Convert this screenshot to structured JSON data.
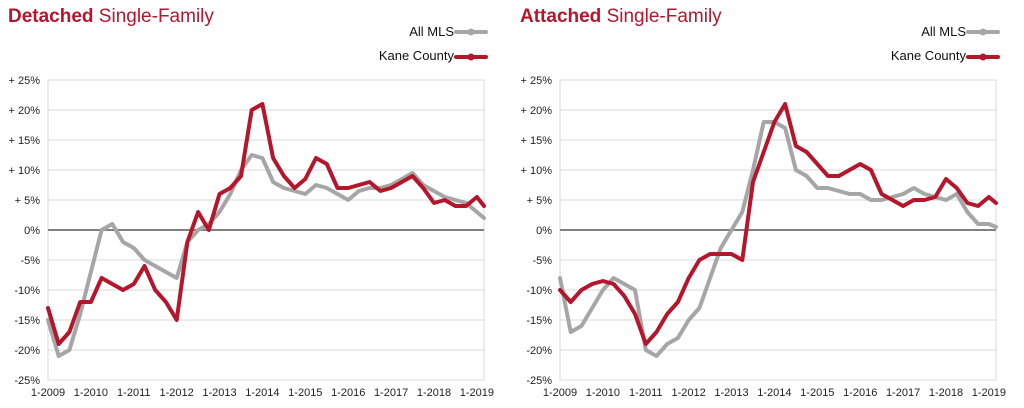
{
  "colors": {
    "accent": "#b5162b",
    "all_mls": "#a6a6a6",
    "kane": "#b5162b",
    "zero_line": "#808080",
    "grid": "#d9d9d9"
  },
  "chart_data": [
    {
      "type": "line",
      "title_bold": "Detached",
      "title_rest": " Single-Family",
      "ylim": [
        -25,
        25
      ],
      "y_ticks": [
        "+ 25%",
        "+ 20%",
        "+ 15%",
        "+ 10%",
        "+ 5%",
        "0%",
        "-5%",
        "-10%",
        "-15%",
        "-20%",
        "-25%"
      ],
      "x_ticks": [
        "1-2009",
        "1-2010",
        "1-2011",
        "1-2012",
        "1-2013",
        "1-2014",
        "1-2015",
        "1-2016",
        "1-2017",
        "1-2018",
        "1-2019"
      ],
      "x_range": [
        "2009-01",
        "2019-03"
      ],
      "grid": true,
      "legend": "top-right",
      "series": [
        {
          "name": "All MLS",
          "x": [
            "2009-01",
            "2009-04",
            "2009-07",
            "2009-10",
            "2010-01",
            "2010-04",
            "2010-07",
            "2010-10",
            "2011-01",
            "2011-04",
            "2011-07",
            "2011-10",
            "2012-01",
            "2012-04",
            "2012-07",
            "2012-10",
            "2013-01",
            "2013-04",
            "2013-07",
            "2013-10",
            "2014-01",
            "2014-04",
            "2014-07",
            "2014-10",
            "2015-01",
            "2015-04",
            "2015-07",
            "2015-10",
            "2016-01",
            "2016-04",
            "2016-07",
            "2016-10",
            "2017-01",
            "2017-04",
            "2017-07",
            "2017-10",
            "2018-01",
            "2018-04",
            "2018-07",
            "2018-10",
            "2019-01",
            "2019-03"
          ],
          "values": [
            -15,
            -21,
            -20,
            -14,
            -7,
            0,
            1,
            -2,
            -3,
            -5,
            -6,
            -7,
            -8,
            -2,
            0,
            1,
            3,
            6,
            10,
            12.5,
            12,
            8,
            7,
            6.5,
            6,
            7.5,
            7,
            6,
            5,
            6.5,
            7,
            7,
            7.5,
            8.5,
            9.5,
            7.5,
            6.5,
            5.5,
            5,
            4.5,
            3,
            2
          ]
        },
        {
          "name": "Kane County",
          "x": [
            "2009-01",
            "2009-04",
            "2009-07",
            "2009-10",
            "2010-01",
            "2010-04",
            "2010-07",
            "2010-10",
            "2011-01",
            "2011-04",
            "2011-07",
            "2011-10",
            "2012-01",
            "2012-04",
            "2012-07",
            "2012-10",
            "2013-01",
            "2013-04",
            "2013-07",
            "2013-10",
            "2014-01",
            "2014-04",
            "2014-07",
            "2014-10",
            "2015-01",
            "2015-04",
            "2015-07",
            "2015-10",
            "2016-01",
            "2016-04",
            "2016-07",
            "2016-10",
            "2017-01",
            "2017-04",
            "2017-07",
            "2017-10",
            "2018-01",
            "2018-04",
            "2018-07",
            "2018-10",
            "2019-01",
            "2019-03"
          ],
          "values": [
            -13,
            -19,
            -17,
            -12,
            -12,
            -8,
            -9,
            -10,
            -9,
            -6,
            -10,
            -12,
            -15,
            -2,
            3,
            0,
            6,
            7,
            9,
            20,
            21,
            12,
            9,
            7,
            8.5,
            12,
            11,
            7,
            7,
            7.5,
            8,
            6.5,
            7,
            8,
            9,
            7,
            4.5,
            5,
            4,
            4,
            5.5,
            4
          ]
        }
      ]
    },
    {
      "type": "line",
      "title_bold": "Attached",
      "title_rest": " Single-Family",
      "ylim": [
        -25,
        25
      ],
      "y_ticks": [
        "+ 25%",
        "+ 20%",
        "+ 15%",
        "+ 10%",
        "+ 5%",
        "0%",
        "-5%",
        "-10%",
        "-15%",
        "-20%",
        "-25%"
      ],
      "x_ticks": [
        "1-2009",
        "1-2010",
        "1-2011",
        "1-2012",
        "1-2013",
        "1-2014",
        "1-2015",
        "1-2016",
        "1-2017",
        "1-2018",
        "1-2019"
      ],
      "x_range": [
        "2009-01",
        "2019-03"
      ],
      "grid": true,
      "legend": "top-right",
      "series": [
        {
          "name": "All MLS",
          "x": [
            "2009-01",
            "2009-04",
            "2009-07",
            "2009-10",
            "2010-01",
            "2010-04",
            "2010-07",
            "2010-10",
            "2011-01",
            "2011-04",
            "2011-07",
            "2011-10",
            "2012-01",
            "2012-04",
            "2012-07",
            "2012-10",
            "2013-01",
            "2013-04",
            "2013-07",
            "2013-10",
            "2014-01",
            "2014-04",
            "2014-07",
            "2014-10",
            "2015-01",
            "2015-04",
            "2015-07",
            "2015-10",
            "2016-01",
            "2016-04",
            "2016-07",
            "2016-10",
            "2017-01",
            "2017-04",
            "2017-07",
            "2017-10",
            "2018-01",
            "2018-04",
            "2018-07",
            "2018-10",
            "2019-01",
            "2019-03"
          ],
          "values": [
            -8,
            -17,
            -16,
            -13,
            -10,
            -8,
            -9,
            -10,
            -20,
            -21,
            -19,
            -18,
            -15,
            -13,
            -8,
            -3,
            0,
            3,
            10,
            18,
            18,
            17,
            10,
            9,
            7,
            7,
            6.5,
            6,
            6,
            5,
            5,
            5.5,
            6,
            7,
            6,
            5.5,
            5,
            6,
            3,
            1,
            1,
            0.5
          ]
        },
        {
          "name": "Kane County",
          "x": [
            "2009-01",
            "2009-04",
            "2009-07",
            "2009-10",
            "2010-01",
            "2010-04",
            "2010-07",
            "2010-10",
            "2011-01",
            "2011-04",
            "2011-07",
            "2011-10",
            "2012-01",
            "2012-04",
            "2012-07",
            "2012-10",
            "2013-01",
            "2013-04",
            "2013-07",
            "2013-10",
            "2014-01",
            "2014-04",
            "2014-07",
            "2014-10",
            "2015-01",
            "2015-04",
            "2015-07",
            "2015-10",
            "2016-01",
            "2016-04",
            "2016-07",
            "2016-10",
            "2017-01",
            "2017-04",
            "2017-07",
            "2017-10",
            "2018-01",
            "2018-04",
            "2018-07",
            "2018-10",
            "2019-01",
            "2019-03"
          ],
          "values": [
            -10,
            -12,
            -10,
            -9,
            -8.5,
            -9,
            -11,
            -14,
            -19,
            -17,
            -14,
            -12,
            -8,
            -5,
            -4,
            -4,
            -4,
            -5,
            8,
            13,
            18,
            21,
            14,
            13,
            11,
            9,
            9,
            10,
            11,
            10,
            6,
            5,
            4,
            5,
            5,
            5.5,
            8.5,
            7,
            4.5,
            4,
            5.5,
            4.5
          ]
        }
      ]
    }
  ]
}
